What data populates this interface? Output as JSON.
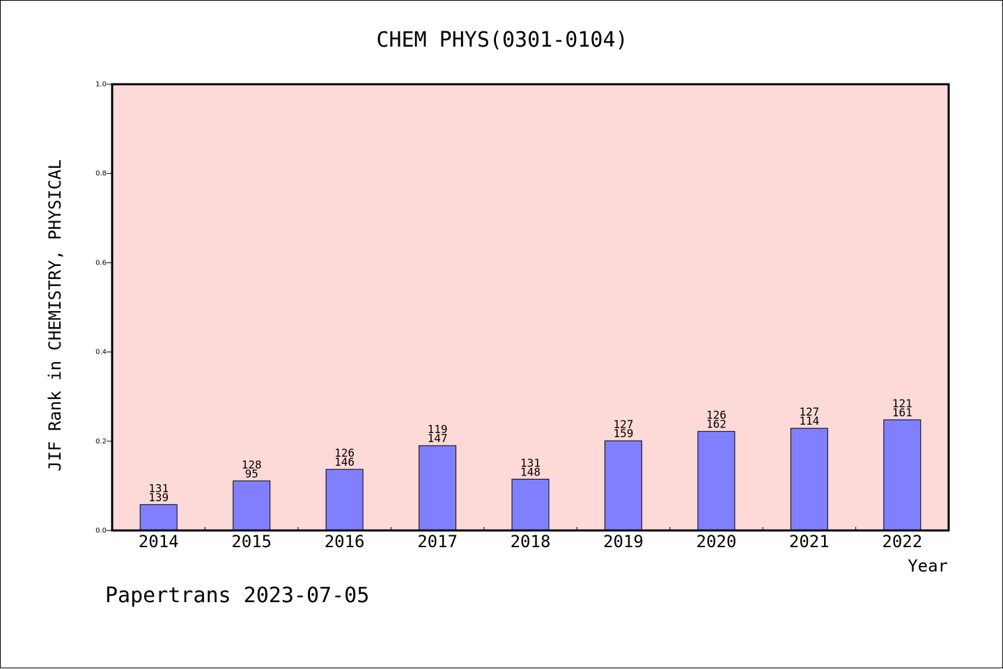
{
  "chart_data": {
    "type": "bar",
    "title": "CHEM PHYS(0301-0104)",
    "xlabel": "Year",
    "ylabel": "JIF Rank in CHEMISTRY, PHYSICAL",
    "ylim": [
      0,
      1.0
    ],
    "yticks": [
      "0.0",
      "0.2",
      "0.4",
      "0.6",
      "0.8",
      "1.0"
    ],
    "categories": [
      "2014",
      "2015",
      "2016",
      "2017",
      "2018",
      "2019",
      "2020",
      "2021",
      "2022"
    ],
    "values": [
      0.058,
      0.111,
      0.137,
      0.19,
      0.115,
      0.201,
      0.222,
      0.229,
      0.248
    ],
    "label_top": [
      "131",
      "128",
      "126",
      "119",
      "131",
      "127",
      "126",
      "127",
      "121"
    ],
    "label_bottom": [
      "139",
      "95",
      "146",
      "147",
      "148",
      "159",
      "162",
      "114",
      "161"
    ],
    "bar_color": "#8080ff",
    "plot_background": "#fddad7",
    "grid": false
  },
  "footer": "Papertrans 2023-07-05"
}
